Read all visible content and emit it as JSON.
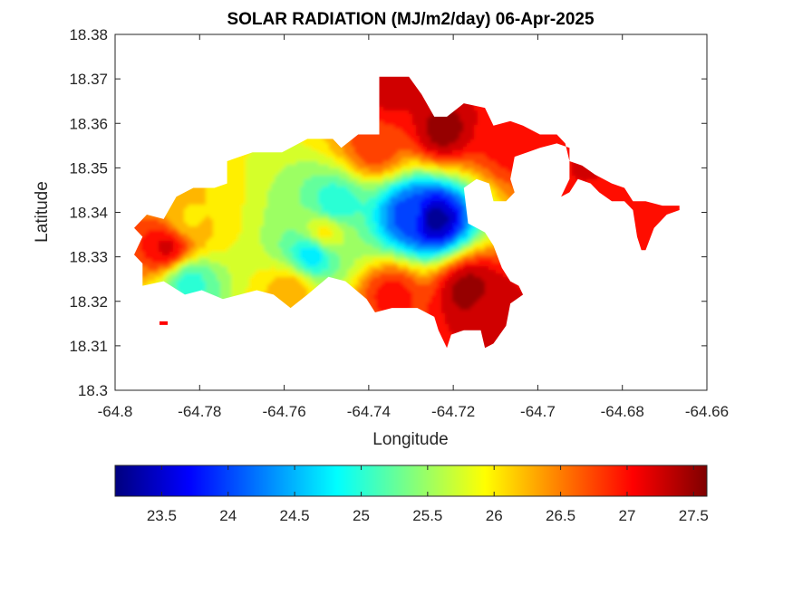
{
  "chart_data": {
    "type": "heatmap",
    "title": "SOLAR RADIATION (MJ/m2/day) 06-Apr-2025",
    "xlabel": "Longitude",
    "ylabel": "Latitude",
    "xlim": [
      -64.8,
      -64.66
    ],
    "ylim": [
      18.3,
      18.38
    ],
    "xticks": [
      "-64.8",
      "-64.78",
      "-64.76",
      "-64.74",
      "-64.72",
      "-64.7",
      "-64.68",
      "-64.66"
    ],
    "yticks": [
      "18.3",
      "18.31",
      "18.32",
      "18.33",
      "18.34",
      "18.35",
      "18.36",
      "18.37",
      "18.38"
    ],
    "colormap": "jet",
    "colorbar": {
      "range": [
        23.15,
        27.6
      ],
      "ticks": [
        "23.5",
        "24",
        "24.5",
        "25",
        "25.5",
        "26",
        "26.5",
        "27",
        "27.5"
      ],
      "placement": "bottom"
    },
    "grid": false,
    "hotspots": [
      {
        "lon": -64.7245,
        "lat": 18.3385,
        "value": 23.2
      },
      {
        "lon": -64.7305,
        "lat": 18.3395,
        "value": 24.0
      },
      {
        "lon": -64.748,
        "lat": 18.3415,
        "value": 24.9
      },
      {
        "lon": -64.7535,
        "lat": 18.3305,
        "value": 24.7
      },
      {
        "lon": -64.7825,
        "lat": 18.3245,
        "value": 25.0
      },
      {
        "lon": -64.7505,
        "lat": 18.3355,
        "value": 26.0
      },
      {
        "lon": -64.7875,
        "lat": 18.332,
        "value": 27.2
      },
      {
        "lon": -64.7825,
        "lat": 18.3385,
        "value": 26.1
      },
      {
        "lon": -64.7585,
        "lat": 18.3225,
        "value": 26.3
      },
      {
        "lon": -64.7345,
        "lat": 18.3215,
        "value": 27.0
      },
      {
        "lon": -64.7165,
        "lat": 18.3225,
        "value": 27.5
      },
      {
        "lon": -64.7115,
        "lat": 18.3175,
        "value": 27.3
      },
      {
        "lon": -64.7225,
        "lat": 18.3585,
        "value": 27.5
      },
      {
        "lon": -64.7345,
        "lat": 18.3665,
        "value": 27.2
      },
      {
        "lon": -64.7385,
        "lat": 18.3545,
        "value": 26.8
      },
      {
        "lon": -64.7065,
        "lat": 18.3555,
        "value": 27.0
      },
      {
        "lon": -64.6865,
        "lat": 18.3495,
        "value": 27.2
      },
      {
        "lon": -64.6715,
        "lat": 18.3385,
        "value": 27.0
      },
      {
        "lon": -64.6845,
        "lat": 18.3455,
        "value": 27.0
      }
    ],
    "land_outline": [
      [
        -64.7955,
        18.3365
      ],
      [
        -64.7925,
        18.3395
      ],
      [
        -64.7885,
        18.3385
      ],
      [
        -64.7855,
        18.3435
      ],
      [
        -64.7815,
        18.3455
      ],
      [
        -64.7765,
        18.3455
      ],
      [
        -64.7735,
        18.3465
      ],
      [
        -64.7735,
        18.3515
      ],
      [
        -64.7675,
        18.3535
      ],
      [
        -64.7605,
        18.3535
      ],
      [
        -64.7545,
        18.3565
      ],
      [
        -64.7485,
        18.3565
      ],
      [
        -64.7465,
        18.3545
      ],
      [
        -64.7425,
        18.3575
      ],
      [
        -64.7375,
        18.3575
      ],
      [
        -64.7375,
        18.3705
      ],
      [
        -64.7305,
        18.3705
      ],
      [
        -64.7275,
        18.3665
      ],
      [
        -64.7245,
        18.3615
      ],
      [
        -64.7215,
        18.3615
      ],
      [
        -64.7175,
        18.3645
      ],
      [
        -64.7125,
        18.3635
      ],
      [
        -64.7105,
        18.3595
      ],
      [
        -64.7065,
        18.3605
      ],
      [
        -64.7035,
        18.3595
      ],
      [
        -64.6995,
        18.3575
      ],
      [
        -64.6955,
        18.3575
      ],
      [
        -64.6935,
        18.3555
      ],
      [
        -64.6925,
        18.3515
      ],
      [
        -64.6895,
        18.3505
      ],
      [
        -64.6865,
        18.3485
      ],
      [
        -64.6825,
        18.3465
      ],
      [
        -64.6795,
        18.3455
      ],
      [
        -64.6775,
        18.3425
      ],
      [
        -64.6745,
        18.3425
      ],
      [
        -64.6705,
        18.3415
      ],
      [
        -64.6665,
        18.3415
      ],
      [
        -64.6665,
        18.3405
      ],
      [
        -64.6695,
        18.3395
      ],
      [
        -64.6725,
        18.3365
      ],
      [
        -64.6745,
        18.3315
      ],
      [
        -64.6755,
        18.3315
      ],
      [
        -64.6765,
        18.3345
      ],
      [
        -64.6775,
        18.3405
      ],
      [
        -64.6795,
        18.3425
      ],
      [
        -64.6825,
        18.3425
      ],
      [
        -64.6855,
        18.3445
      ],
      [
        -64.6875,
        18.3465
      ],
      [
        -64.6905,
        18.3475
      ],
      [
        -64.6925,
        18.3445
      ],
      [
        -64.6945,
        18.3435
      ],
      [
        -64.6925,
        18.3475
      ],
      [
        -64.6925,
        18.3545
      ],
      [
        -64.6955,
        18.3555
      ],
      [
        -64.6995,
        18.3545
      ],
      [
        -64.7025,
        18.3535
      ],
      [
        -64.7055,
        18.3525
      ],
      [
        -64.7065,
        18.3475
      ],
      [
        -64.7055,
        18.3445
      ],
      [
        -64.7075,
        18.3425
      ],
      [
        -64.7105,
        18.3425
      ],
      [
        -64.7115,
        18.3465
      ],
      [
        -64.7145,
        18.3475
      ],
      [
        -64.7175,
        18.3455
      ],
      [
        -64.7165,
        18.3375
      ],
      [
        -64.7125,
        18.3355
      ],
      [
        -64.7105,
        18.3325
      ],
      [
        -64.7085,
        18.3275
      ],
      [
        -64.7065,
        18.3245
      ],
      [
        -64.7045,
        18.3235
      ],
      [
        -64.7035,
        18.3215
      ],
      [
        -64.7065,
        18.3195
      ],
      [
        -64.7075,
        18.3145
      ],
      [
        -64.7105,
        18.3105
      ],
      [
        -64.7125,
        18.3095
      ],
      [
        -64.7135,
        18.3135
      ],
      [
        -64.7175,
        18.3135
      ],
      [
        -64.7205,
        18.3125
      ],
      [
        -64.7215,
        18.3095
      ],
      [
        -64.7235,
        18.3135
      ],
      [
        -64.7245,
        18.3165
      ],
      [
        -64.7285,
        18.3185
      ],
      [
        -64.7345,
        18.3185
      ],
      [
        -64.7385,
        18.3175
      ],
      [
        -64.7405,
        18.3205
      ],
      [
        -64.7455,
        18.3245
      ],
      [
        -64.7495,
        18.3255
      ],
      [
        -64.7545,
        18.3215
      ],
      [
        -64.7585,
        18.3185
      ],
      [
        -64.7625,
        18.3215
      ],
      [
        -64.7665,
        18.3225
      ],
      [
        -64.7705,
        18.3215
      ],
      [
        -64.7745,
        18.3205
      ],
      [
        -64.7795,
        18.3225
      ],
      [
        -64.7835,
        18.3215
      ],
      [
        -64.7885,
        18.3245
      ],
      [
        -64.7935,
        18.3235
      ],
      [
        -64.7935,
        18.3285
      ],
      [
        -64.7955,
        18.3305
      ],
      [
        -64.7935,
        18.3345
      ]
    ]
  }
}
